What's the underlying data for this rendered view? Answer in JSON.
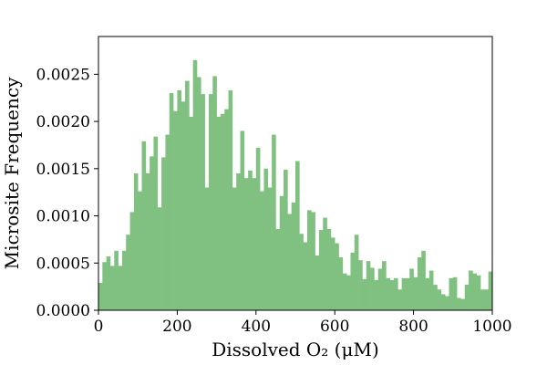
{
  "chart_data": {
    "type": "bar",
    "xlabel": "Dissolved O₂ (μM)",
    "ylabel": "Microsite Frequency",
    "xlim": [
      0,
      1000
    ],
    "ylim": [
      0,
      0.0029
    ],
    "xticks": [
      "0",
      "200",
      "400",
      "600",
      "800",
      "1000"
    ],
    "yticks": [
      "0.0000",
      "0.0005",
      "0.0010",
      "0.0015",
      "0.0020",
      "0.0025"
    ],
    "grid": false,
    "bar_color": "#80c080",
    "bin_width": 10,
    "series": [
      {
        "x": [
          5,
          15,
          25,
          35,
          45,
          55,
          65,
          75,
          85,
          95,
          105,
          115,
          125,
          135,
          145,
          155,
          165,
          175,
          185,
          195,
          205,
          215,
          225,
          235,
          245,
          255,
          265,
          275,
          285,
          295,
          305,
          315,
          325,
          335,
          345,
          355,
          365,
          375,
          385,
          395,
          405,
          415,
          425,
          435,
          445,
          455,
          465,
          475,
          485,
          495,
          505,
          515,
          525,
          535,
          545,
          555,
          565,
          575,
          585,
          595,
          605,
          615,
          625,
          635,
          645,
          655,
          665,
          675,
          685,
          695,
          705,
          715,
          725,
          735,
          745,
          755,
          765,
          775,
          785,
          795,
          805,
          815,
          825,
          835,
          845,
          855,
          865,
          875,
          885,
          895,
          905,
          915,
          925,
          935,
          945,
          955,
          965,
          975,
          985,
          995
        ],
        "values": [
          0.00029,
          0.00051,
          0.00057,
          0.00047,
          0.00063,
          0.00047,
          0.00063,
          0.0008,
          0.00104,
          0.00145,
          0.00126,
          0.00179,
          0.00145,
          0.00163,
          0.00184,
          0.00109,
          0.00162,
          0.00186,
          0.0023,
          0.00211,
          0.00233,
          0.00221,
          0.00243,
          0.00205,
          0.00265,
          0.00247,
          0.00229,
          0.0013,
          0.00229,
          0.00248,
          0.00205,
          0.00208,
          0.00213,
          0.00233,
          0.0013,
          0.00145,
          0.0019,
          0.0014,
          0.00148,
          0.0014,
          0.00172,
          0.00126,
          0.0015,
          0.0013,
          0.00186,
          0.00086,
          0.00121,
          0.00149,
          0.00102,
          0.00114,
          0.00158,
          0.00081,
          0.00072,
          0.00106,
          0.00104,
          0.00058,
          0.00085,
          0.00098,
          0.00086,
          0.00077,
          0.00071,
          0.00056,
          0.00039,
          0.00037,
          0.00061,
          0.0008,
          0.00053,
          0.00033,
          0.00052,
          0.00045,
          0.00032,
          0.00044,
          0.00052,
          0.00034,
          0.00032,
          0.00034,
          0.00022,
          0.00034,
          0.00034,
          0.00044,
          0.00035,
          0.00056,
          0.00063,
          0.00034,
          0.00042,
          0.00027,
          0.00022,
          0.00017,
          0.00015,
          0.00034,
          0.00035,
          0.00013,
          0.00012,
          0.00027,
          0.00042,
          0.00039,
          0.00037,
          0.00022,
          0.00022,
          0.00041
        ]
      }
    ]
  }
}
